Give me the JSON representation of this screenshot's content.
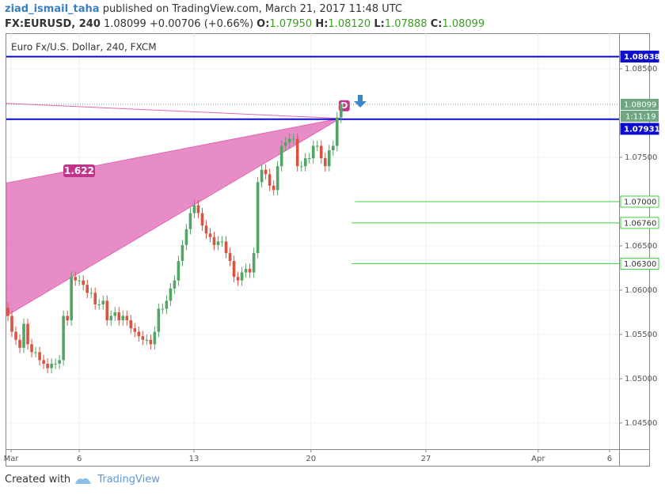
{
  "header": {
    "author": "ziad_ismail_taha",
    "published": "published on TradingView.com, March 21, 2017 11:48 UTC",
    "symbol": "FX:EURUSD, 240",
    "last": "1.08099",
    "change": "+0.00706 (+0.66%)",
    "o_label": "O:",
    "o": "1.07950",
    "h_label": "H:",
    "h": "1.08120",
    "l_label": "L:",
    "l": "1.07888",
    "c_label": "C:",
    "c": "1.08099"
  },
  "footer": {
    "created": "Created with",
    "brand": "TradingView"
  },
  "chart_data": {
    "type": "candlestick",
    "title": "Euro Fx/U.S. Dollar, 240, FXCM",
    "up_color": "#53a565",
    "down_color": "#d75442",
    "xlim": [
      -0.4,
      154.1
    ],
    "ylim": [
      1.04205,
      1.08902
    ],
    "xticks": [
      {
        "value": 0.8,
        "label": "Mar"
      },
      {
        "value": 18.0,
        "label": "6"
      },
      {
        "value": 46.9,
        "label": "13"
      },
      {
        "value": 76.4,
        "label": "20"
      },
      {
        "value": 105.4,
        "label": "27"
      },
      {
        "value": 133.7,
        "label": "Apr"
      },
      {
        "value": 151.7,
        "label": "6"
      }
    ],
    "yticks": [
      {
        "value": 1.045,
        "label": "1.04500"
      },
      {
        "value": 1.05,
        "label": "1.05000"
      },
      {
        "value": 1.055,
        "label": "1.05500"
      },
      {
        "value": 1.06,
        "label": "1.06000"
      },
      {
        "value": 1.065,
        "label": "1.06500"
      },
      {
        "value": 1.075,
        "label": "1.07500"
      },
      {
        "value": 1.085,
        "label": "1.08500"
      }
    ],
    "grid": true,
    "open": [
      1.058,
      1.0571,
      1.0553,
      1.0544,
      1.0535,
      1.0562,
      1.0539,
      1.053,
      1.053,
      1.0521,
      1.0517,
      1.0512,
      1.0517,
      1.0517,
      1.0521,
      1.0571,
      1.0566,
      1.0615,
      1.0611,
      1.0611,
      1.0606,
      1.0597,
      1.0597,
      1.0584,
      1.0584,
      1.0588,
      1.0566,
      1.0571,
      1.0575,
      1.0566,
      1.0571,
      1.0566,
      1.0557,
      1.0553,
      1.0548,
      1.0544,
      1.0544,
      1.0539,
      1.0553,
      1.0579,
      1.0579,
      1.0588,
      1.0602,
      1.0611,
      1.0633,
      1.0651,
      1.0669,
      1.0687,
      1.0696,
      1.0687,
      1.0673,
      1.0664,
      1.066,
      1.0651,
      1.0655,
      1.0655,
      1.0642,
      1.0633,
      1.0615,
      1.0611,
      1.062,
      1.0624,
      1.062,
      1.0642,
      1.0722,
      1.0736,
      1.0731,
      1.0718,
      1.0713,
      1.074,
      1.0763,
      1.0767,
      1.0771,
      1.0771,
      1.074,
      1.074,
      1.0749,
      1.0749,
      1.0763,
      1.0763,
      1.0749,
      1.074,
      1.0758,
      1.0763,
      1.0795
    ],
    "high": [
      1.0586,
      1.0577,
      1.0559,
      1.055,
      1.0568,
      1.0568,
      1.0545,
      1.0536,
      1.0536,
      1.0527,
      1.0523,
      1.0523,
      1.0523,
      1.0527,
      1.0577,
      1.0577,
      1.0621,
      1.0621,
      1.0617,
      1.0617,
      1.0612,
      1.0603,
      1.0603,
      1.059,
      1.0594,
      1.0594,
      1.0577,
      1.0581,
      1.0581,
      1.0577,
      1.0577,
      1.0572,
      1.0563,
      1.0559,
      1.0554,
      1.055,
      1.055,
      1.0559,
      1.0585,
      1.0585,
      1.0594,
      1.0608,
      1.0617,
      1.0639,
      1.0657,
      1.0675,
      1.0693,
      1.0702,
      1.0702,
      1.0693,
      1.0679,
      1.067,
      1.0666,
      1.0661,
      1.0661,
      1.0661,
      1.0648,
      1.0639,
      1.0621,
      1.0626,
      1.063,
      1.063,
      1.0648,
      1.0728,
      1.0742,
      1.0742,
      1.0737,
      1.0724,
      1.0746,
      1.0769,
      1.0773,
      1.0777,
      1.0777,
      1.0777,
      1.0746,
      1.0755,
      1.0755,
      1.0769,
      1.0769,
      1.0769,
      1.0755,
      1.0764,
      1.0769,
      1.0801,
      1.0812
    ],
    "low": [
      1.0565,
      1.0547,
      1.0538,
      1.0529,
      1.0529,
      1.0533,
      1.0524,
      1.0524,
      1.0515,
      1.0511,
      1.0506,
      1.0506,
      1.0511,
      1.0511,
      1.0515,
      1.056,
      1.056,
      1.0605,
      1.0605,
      1.06,
      1.0591,
      1.0591,
      1.0578,
      1.0578,
      1.0578,
      1.056,
      1.056,
      1.0565,
      1.056,
      1.056,
      1.056,
      1.0551,
      1.0547,
      1.0542,
      1.0538,
      1.0538,
      1.0533,
      1.0533,
      1.0547,
      1.0573,
      1.0573,
      1.0582,
      1.0596,
      1.0605,
      1.0627,
      1.0645,
      1.0663,
      1.0681,
      1.0681,
      1.0667,
      1.0658,
      1.0654,
      1.0645,
      1.0645,
      1.0649,
      1.0636,
      1.0627,
      1.0609,
      1.0605,
      1.0605,
      1.0614,
      1.0614,
      1.0614,
      1.0636,
      1.0716,
      1.0725,
      1.0712,
      1.0707,
      1.0707,
      1.0734,
      1.0757,
      1.0761,
      1.0765,
      1.0734,
      1.0734,
      1.0734,
      1.0743,
      1.0743,
      1.0757,
      1.0743,
      1.0734,
      1.0734,
      1.0752,
      1.0757,
      1.07888
    ],
    "close": [
      1.0571,
      1.0553,
      1.0544,
      1.0535,
      1.0562,
      1.0539,
      1.053,
      1.053,
      1.0521,
      1.0517,
      1.0512,
      1.0517,
      1.0517,
      1.0521,
      1.0571,
      1.0566,
      1.0615,
      1.0611,
      1.0611,
      1.0606,
      1.0597,
      1.0597,
      1.0584,
      1.0584,
      1.0588,
      1.0566,
      1.0571,
      1.0575,
      1.0566,
      1.0571,
      1.0566,
      1.0557,
      1.0553,
      1.0548,
      1.0544,
      1.0544,
      1.0539,
      1.0553,
      1.0579,
      1.0579,
      1.0588,
      1.0602,
      1.0611,
      1.0633,
      1.0651,
      1.0669,
      1.0687,
      1.0696,
      1.0687,
      1.0673,
      1.0664,
      1.066,
      1.0651,
      1.0655,
      1.0655,
      1.0642,
      1.0633,
      1.0615,
      1.0611,
      1.062,
      1.0624,
      1.062,
      1.0642,
      1.0722,
      1.0736,
      1.0731,
      1.0718,
      1.0713,
      1.074,
      1.0763,
      1.0767,
      1.0771,
      1.0771,
      1.074,
      1.074,
      1.0749,
      1.0749,
      1.0763,
      1.0763,
      1.0749,
      1.074,
      1.0758,
      1.0763,
      1.0795,
      1.08099
    ],
    "last_price": 1.08099,
    "countdown": "1:11:19",
    "last_color": "#6fa580",
    "levels": [
      {
        "value": 1.08638,
        "color": "#0d0dd0",
        "from": -0.4
      },
      {
        "value": 1.07931,
        "color": "#0d0dd0",
        "from": -0.4
      },
      {
        "value": 1.07,
        "label": "1.07000",
        "color": "#3ccf3c",
        "from": 87.5
      },
      {
        "value": 1.0676,
        "label": "1.06760",
        "color": "#3ccf3c",
        "from": 86.7
      },
      {
        "value": 1.063,
        "label": "1.06300",
        "color": "#3ccf3c",
        "from": 86.7
      }
    ],
    "pattern": {
      "color": "#e066b4",
      "x": [
        -0.4,
        83.8,
        -0.4
      ],
      "y": [
        1.0721,
        1.0794,
        1.0571
      ],
      "line_x": [
        -0.4,
        83.8
      ],
      "line_y": [
        1.0811,
        1.0794
      ],
      "ratio": "1.622",
      "point": "D"
    }
  }
}
